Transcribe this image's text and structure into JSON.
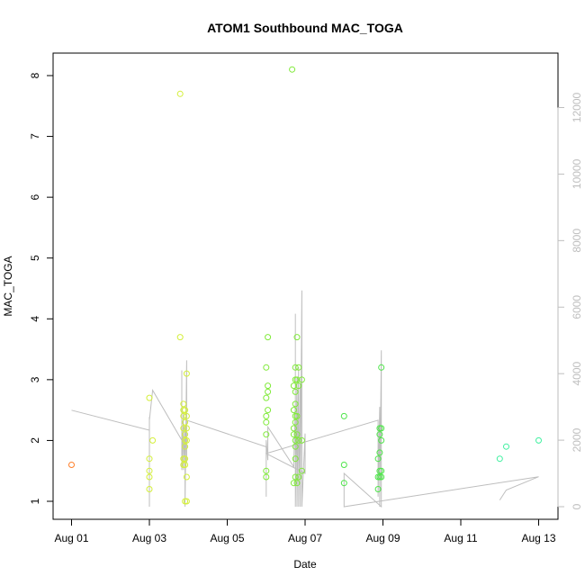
{
  "chart_data": {
    "type": "scatter",
    "title": "ATOM1 Southbound MAC_TOGA",
    "xlabel": "Date",
    "ylabel": "MAC_TOGA",
    "xlim": [
      "2023-08-01",
      "2023-08-13"
    ],
    "ylim": [
      1,
      8
    ],
    "x_tick_labels": [
      "Aug 01",
      "Aug 03",
      "Aug 05",
      "Aug 07",
      "Aug 09",
      "Aug 11",
      "Aug 13"
    ],
    "y_tick_labels": [
      "1",
      "2",
      "3",
      "4",
      "5",
      "6",
      "7",
      "8"
    ],
    "y2_tick_labels": [
      "0",
      "2000",
      "4000",
      "6000",
      "8000",
      "10000",
      "12000"
    ],
    "y2lim": [
      0,
      12000
    ],
    "grid": false,
    "legend": "none",
    "colors": {
      "secondary_series": "#bebebe",
      "axis": "#000000",
      "right_axis": "#bebebe"
    },
    "series": [
      {
        "kind": "points",
        "axis": "left",
        "points": [
          [
            "2023-08-01 00:00",
            1.6,
            "#ff7f2a"
          ],
          [
            "2023-08-03 00:00",
            2.7,
            "#d4ef3a"
          ],
          [
            "2023-08-03 00:00",
            1.7,
            "#d4ef3a"
          ],
          [
            "2023-08-03 00:00",
            1.5,
            "#d4ef3a"
          ],
          [
            "2023-08-03 00:00",
            1.4,
            "#d4ef3a"
          ],
          [
            "2023-08-03 00:00",
            1.2,
            "#d4ef3a"
          ],
          [
            "2023-08-03 02:00",
            2.0,
            "#d4ef3a"
          ],
          [
            "2023-08-03 19:00",
            7.7,
            "#d4ef3a"
          ],
          [
            "2023-08-03 19:00",
            3.7,
            "#d4ef3a"
          ],
          [
            "2023-08-03 21:00",
            2.6,
            "#d4ef3a"
          ],
          [
            "2023-08-03 21:00",
            2.5,
            "#d4ef3a"
          ],
          [
            "2023-08-03 21:00",
            2.4,
            "#d4ef3a"
          ],
          [
            "2023-08-03 21:00",
            2.2,
            "#d4ef3a"
          ],
          [
            "2023-08-03 21:00",
            1.7,
            "#d4ef3a"
          ],
          [
            "2023-08-03 21:00",
            1.6,
            "#d4ef3a"
          ],
          [
            "2023-08-03 22:00",
            2.5,
            "#d4ef3a"
          ],
          [
            "2023-08-03 22:00",
            2.3,
            "#d4ef3a"
          ],
          [
            "2023-08-03 22:00",
            2.1,
            "#d4ef3a"
          ],
          [
            "2023-08-03 22:00",
            2.0,
            "#d4ef3a"
          ],
          [
            "2023-08-03 22:00",
            1.9,
            "#d4ef3a"
          ],
          [
            "2023-08-03 22:00",
            1.7,
            "#d4ef3a"
          ],
          [
            "2023-08-03 22:00",
            1.6,
            "#d4ef3a"
          ],
          [
            "2023-08-03 22:00",
            1.0,
            "#d4ef3a"
          ],
          [
            "2023-08-03 23:00",
            3.1,
            "#d4ef3a"
          ],
          [
            "2023-08-03 23:00",
            2.4,
            "#d4ef3a"
          ],
          [
            "2023-08-03 23:00",
            2.2,
            "#d4ef3a"
          ],
          [
            "2023-08-03 23:00",
            2.0,
            "#d4ef3a"
          ],
          [
            "2023-08-03 23:00",
            1.4,
            "#d4ef3a"
          ],
          [
            "2023-08-03 23:00",
            1.0,
            "#d4ef3a"
          ],
          [
            "2023-08-06 00:00",
            3.2,
            "#80ea3a"
          ],
          [
            "2023-08-06 00:00",
            2.7,
            "#80ea3a"
          ],
          [
            "2023-08-06 00:00",
            2.4,
            "#80ea3a"
          ],
          [
            "2023-08-06 00:00",
            2.3,
            "#80ea3a"
          ],
          [
            "2023-08-06 00:00",
            2.1,
            "#80ea3a"
          ],
          [
            "2023-08-06 00:00",
            1.5,
            "#80ea3a"
          ],
          [
            "2023-08-06 00:00",
            1.4,
            "#80ea3a"
          ],
          [
            "2023-08-06 01:00",
            3.7,
            "#80ea3a"
          ],
          [
            "2023-08-06 01:00",
            2.9,
            "#80ea3a"
          ],
          [
            "2023-08-06 01:00",
            2.8,
            "#80ea3a"
          ],
          [
            "2023-08-06 01:00",
            2.5,
            "#80ea3a"
          ],
          [
            "2023-08-06 16:00",
            8.1,
            "#80ea3a"
          ],
          [
            "2023-08-06 17:00",
            2.9,
            "#80ea3a"
          ],
          [
            "2023-08-06 17:00",
            2.5,
            "#80ea3a"
          ],
          [
            "2023-08-06 17:00",
            2.2,
            "#80ea3a"
          ],
          [
            "2023-08-06 17:00",
            2.1,
            "#80ea3a"
          ],
          [
            "2023-08-06 17:00",
            1.3,
            "#80ea3a"
          ],
          [
            "2023-08-06 18:00",
            3.2,
            "#80ea3a"
          ],
          [
            "2023-08-06 18:00",
            3.0,
            "#80ea3a"
          ],
          [
            "2023-08-06 18:00",
            2.8,
            "#80ea3a"
          ],
          [
            "2023-08-06 18:00",
            2.6,
            "#80ea3a"
          ],
          [
            "2023-08-06 18:00",
            2.4,
            "#80ea3a"
          ],
          [
            "2023-08-06 18:00",
            2.3,
            "#80ea3a"
          ],
          [
            "2023-08-06 18:00",
            2.0,
            "#80ea3a"
          ],
          [
            "2023-08-06 18:00",
            1.9,
            "#80ea3a"
          ],
          [
            "2023-08-06 18:00",
            1.7,
            "#80ea3a"
          ],
          [
            "2023-08-06 18:00",
            1.4,
            "#80ea3a"
          ],
          [
            "2023-08-06 19:00",
            3.7,
            "#80ea3a"
          ],
          [
            "2023-08-06 19:00",
            3.0,
            "#80ea3a"
          ],
          [
            "2023-08-06 19:00",
            2.4,
            "#80ea3a"
          ],
          [
            "2023-08-06 19:00",
            2.1,
            "#80ea3a"
          ],
          [
            "2023-08-06 19:00",
            1.3,
            "#80ea3a"
          ],
          [
            "2023-08-06 20:00",
            3.2,
            "#80ea3a"
          ],
          [
            "2023-08-06 20:00",
            2.9,
            "#80ea3a"
          ],
          [
            "2023-08-06 20:00",
            2.0,
            "#80ea3a"
          ],
          [
            "2023-08-06 20:00",
            1.4,
            "#80ea3a"
          ],
          [
            "2023-08-06 22:00",
            3.0,
            "#80ea3a"
          ],
          [
            "2023-08-06 22:00",
            2.0,
            "#80ea3a"
          ],
          [
            "2023-08-06 22:00",
            1.5,
            "#80ea3a"
          ],
          [
            "2023-08-08 00:00",
            2.4,
            "#4ee54a"
          ],
          [
            "2023-08-08 00:00",
            1.6,
            "#4ee54a"
          ],
          [
            "2023-08-08 00:00",
            1.3,
            "#4ee54a"
          ],
          [
            "2023-08-08 21:00",
            1.7,
            "#4ee54a"
          ],
          [
            "2023-08-08 21:00",
            1.4,
            "#4ee54a"
          ],
          [
            "2023-08-08 21:00",
            1.2,
            "#4ee54a"
          ],
          [
            "2023-08-08 22:00",
            2.2,
            "#4ee54a"
          ],
          [
            "2023-08-08 22:00",
            2.1,
            "#4ee54a"
          ],
          [
            "2023-08-08 22:00",
            1.8,
            "#4ee54a"
          ],
          [
            "2023-08-08 22:00",
            1.5,
            "#4ee54a"
          ],
          [
            "2023-08-08 22:00",
            1.4,
            "#4ee54a"
          ],
          [
            "2023-08-08 23:00",
            3.2,
            "#4ee54a"
          ],
          [
            "2023-08-08 23:00",
            2.2,
            "#4ee54a"
          ],
          [
            "2023-08-08 23:00",
            2.0,
            "#4ee54a"
          ],
          [
            "2023-08-08 23:00",
            1.5,
            "#4ee54a"
          ],
          [
            "2023-08-08 23:00",
            1.4,
            "#4ee54a"
          ],
          [
            "2023-08-12 00:00",
            1.7,
            "#3ff0a0"
          ],
          [
            "2023-08-12 04:00",
            1.9,
            "#3ff0a0"
          ],
          [
            "2023-08-13 00:00",
            2.0,
            "#3ff0a0"
          ]
        ]
      },
      {
        "kind": "line",
        "axis": "right",
        "color": "#bebebe",
        "points": [
          [
            "2023-08-01 00:00",
            2900
          ],
          [
            "2023-08-03 00:00",
            2300
          ],
          [
            "2023-08-03 00:00",
            2100
          ],
          [
            "2023-08-03 00:00",
            2700
          ],
          [
            "2023-08-03 00:00",
            0
          ],
          [
            "2023-08-03 00:00",
            2600
          ],
          [
            "2023-08-03 02:00",
            3500
          ],
          [
            "2023-08-03 20:00",
            2000
          ],
          [
            "2023-08-03 20:00",
            4100
          ],
          [
            "2023-08-03 20:00",
            1100
          ],
          [
            "2023-08-03 21:00",
            2800
          ],
          [
            "2023-08-03 21:00",
            1100
          ],
          [
            "2023-08-03 22:00",
            2400
          ],
          [
            "2023-08-03 22:00",
            0
          ],
          [
            "2023-08-03 23:00",
            4400
          ],
          [
            "2023-08-03 23:00",
            1300
          ],
          [
            "2023-08-03 23:00",
            2600
          ],
          [
            "2023-08-06 00:00",
            1800
          ],
          [
            "2023-08-06 00:00",
            300
          ],
          [
            "2023-08-06 00:00",
            2000
          ],
          [
            "2023-08-06 01:00",
            1400
          ],
          [
            "2023-08-06 01:00",
            2400
          ],
          [
            "2023-08-06 17:00",
            1200
          ],
          [
            "2023-08-06 18:00",
            3200
          ],
          [
            "2023-08-06 18:00",
            5800
          ],
          [
            "2023-08-06 18:00",
            0
          ],
          [
            "2023-08-06 19:00",
            3900
          ],
          [
            "2023-08-06 19:00",
            0
          ],
          [
            "2023-08-06 20:00",
            4200
          ],
          [
            "2023-08-06 20:00",
            0
          ],
          [
            "2023-08-06 21:00",
            3700
          ],
          [
            "2023-08-06 21:00",
            0
          ],
          [
            "2023-08-06 22:00",
            6500
          ],
          [
            "2023-08-06 22:00",
            0
          ],
          [
            "2023-08-07 00:00",
            2200
          ],
          [
            "2023-08-07 00:00",
            1000
          ],
          [
            "2023-08-06 00:00",
            1600
          ],
          [
            "2023-08-08 21:00",
            2600
          ],
          [
            "2023-08-08 21:00",
            300
          ],
          [
            "2023-08-08 22:00",
            3000
          ],
          [
            "2023-08-08 22:00",
            0
          ],
          [
            "2023-08-08 23:00",
            4700
          ],
          [
            "2023-08-08 23:00",
            0
          ],
          [
            "2023-08-08 00:00",
            1000
          ],
          [
            "2023-08-08 00:00",
            0
          ],
          [
            "2023-08-13 00:00",
            900
          ],
          [
            "2023-08-12 04:00",
            500
          ],
          [
            "2023-08-12 00:00",
            200
          ]
        ]
      }
    ]
  }
}
